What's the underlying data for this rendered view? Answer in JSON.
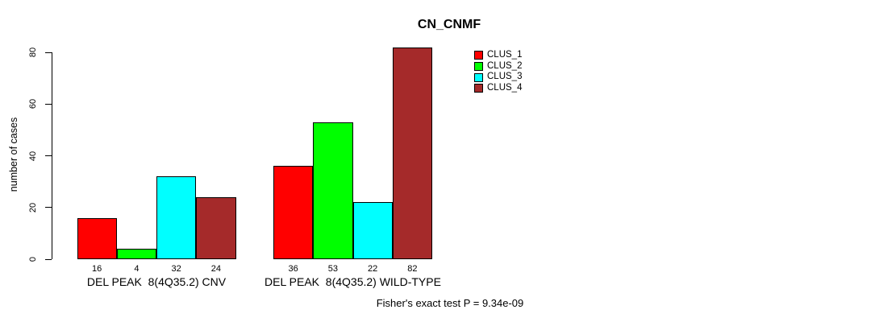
{
  "chart_data": {
    "type": "bar",
    "title": "CN_CNMF",
    "xlabel": "",
    "ylabel": "number of cases",
    "ylim": [
      0,
      80
    ],
    "yticks": [
      0,
      20,
      40,
      60,
      80
    ],
    "grid": false,
    "legend_position": "top-right",
    "categories": [
      "DEL PEAK  8(4Q35.2) CNV",
      "DEL PEAK  8(4Q35.2) WILD-TYPE"
    ],
    "series": [
      {
        "name": "CLUS_1",
        "color": "#FF0000",
        "values": [
          16,
          36
        ]
      },
      {
        "name": "CLUS_2",
        "color": "#00FF00",
        "values": [
          4,
          53
        ]
      },
      {
        "name": "CLUS_3",
        "color": "#00FFFF",
        "values": [
          32,
          22
        ]
      },
      {
        "name": "CLUS_4",
        "color": "#A52A2A",
        "values": [
          24,
          82
        ]
      }
    ],
    "bar_value_labels": [
      [
        "16",
        "4",
        "32",
        "24"
      ],
      [
        "36",
        "53",
        "22",
        "82"
      ]
    ],
    "annotation": "Fisher's exact test P = 9.34e-09"
  }
}
